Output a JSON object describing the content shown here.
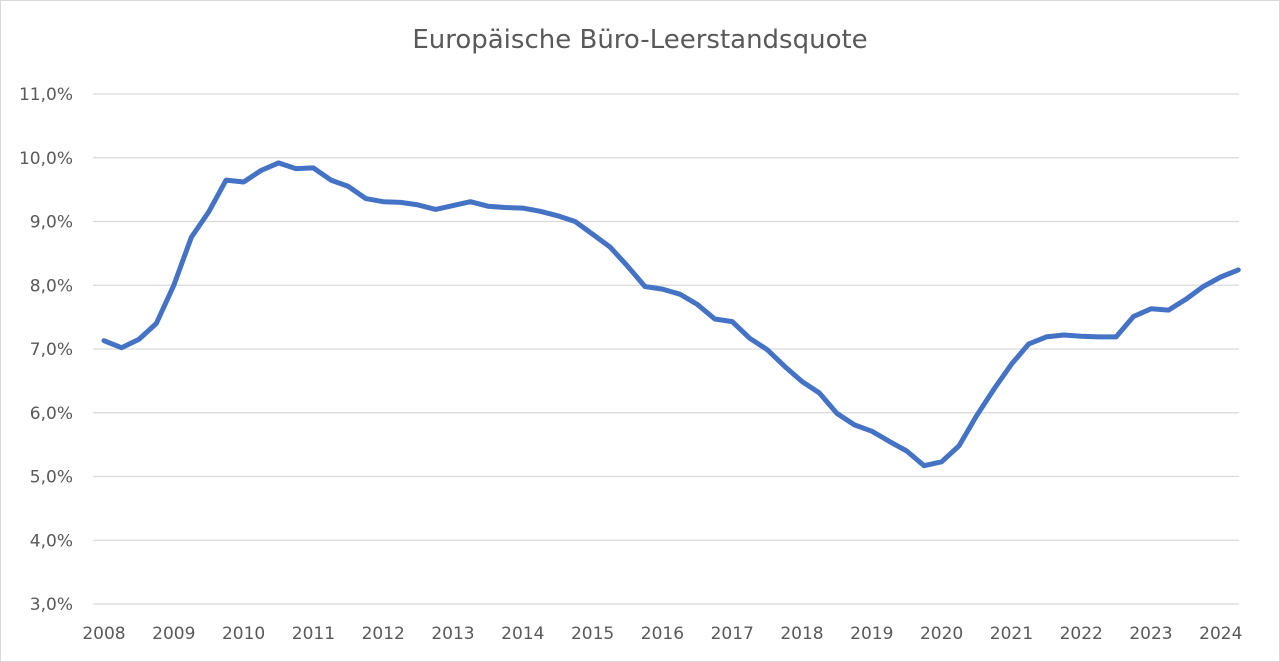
{
  "chart_data": {
    "type": "line",
    "title": "Europäische Büro-Leerstandsquote",
    "xlabel": "",
    "ylabel": "",
    "ylim": [
      3.0,
      11.0
    ],
    "yticks": [
      "3,0%",
      "4,0%",
      "5,0%",
      "6,0%",
      "7,0%",
      "8,0%",
      "9,0%",
      "10,0%",
      "11,0%"
    ],
    "xticks": [
      "2008",
      "2009",
      "2010",
      "2011",
      "2012",
      "2013",
      "2014",
      "2015",
      "2016",
      "2017",
      "2018",
      "2019",
      "2020",
      "2021",
      "2022",
      "2023",
      "2024"
    ],
    "x_start_year": 2008,
    "points_per_year": 4,
    "grid": "horizontal",
    "legend": "none",
    "color": "#4472C4",
    "series": [
      {
        "values": [
          7.13,
          7.02,
          7.15,
          7.4,
          8.0,
          8.75,
          9.15,
          9.65,
          9.62,
          9.8,
          9.92,
          9.83,
          9.84,
          9.65,
          9.55,
          9.36,
          9.31,
          9.3,
          9.26,
          9.19,
          9.25,
          9.31,
          9.24,
          9.22,
          9.21,
          9.16,
          9.09,
          9.0,
          8.8,
          8.6,
          8.3,
          7.98,
          7.94,
          7.86,
          7.7,
          7.47,
          7.43,
          7.17,
          6.99,
          6.73,
          6.49,
          6.31,
          5.99,
          5.81,
          5.71,
          5.55,
          5.4,
          5.17,
          5.23,
          5.48,
          5.95,
          6.37,
          6.76,
          7.08,
          7.19,
          7.22,
          7.2,
          7.19,
          7.19,
          7.51,
          7.63,
          7.61,
          7.78,
          7.98,
          8.13,
          8.24
        ]
      }
    ]
  }
}
